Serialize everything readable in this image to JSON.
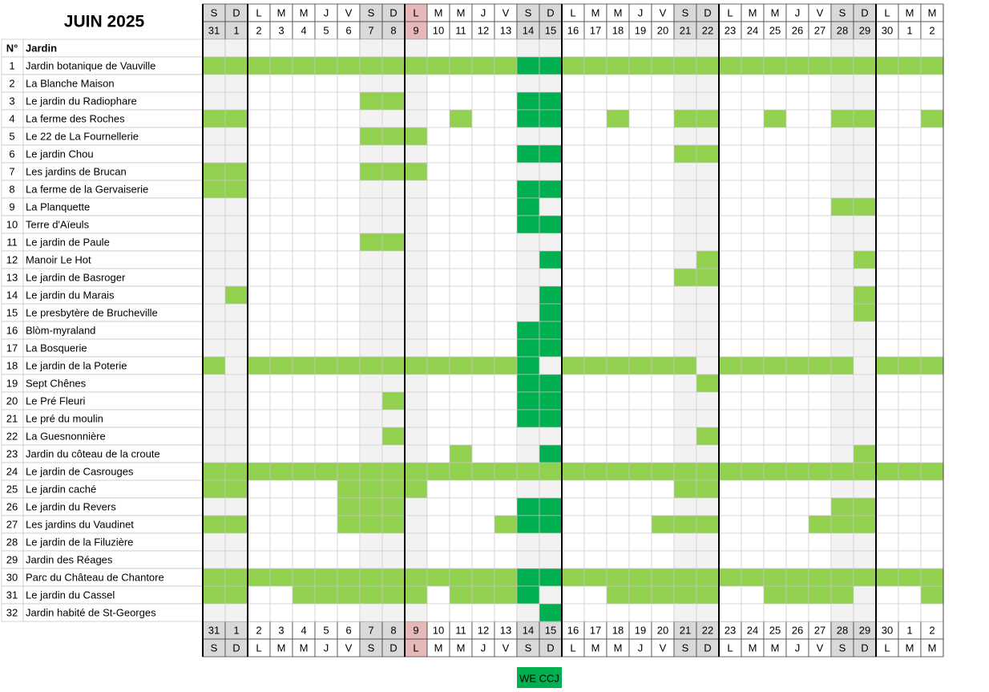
{
  "title": "JUIN 2025",
  "header": {
    "number": "N°",
    "name": "Jardin"
  },
  "colors": {
    "open": "#92d050",
    "we_ccj": "#00b050",
    "weekend": "#f2f2f2",
    "weekend_head": "#d9d9d9",
    "holiday_head": "#e6b8b7"
  },
  "days": [
    {
      "letter": "S",
      "number": 31
    },
    {
      "letter": "D",
      "number": 1
    },
    {
      "letter": "L",
      "number": 2
    },
    {
      "letter": "M",
      "number": 3
    },
    {
      "letter": "M",
      "number": 4
    },
    {
      "letter": "J",
      "number": 5
    },
    {
      "letter": "V",
      "number": 6
    },
    {
      "letter": "S",
      "number": 7
    },
    {
      "letter": "D",
      "number": 8
    },
    {
      "letter": "L",
      "number": 9,
      "holiday": true
    },
    {
      "letter": "M",
      "number": 10
    },
    {
      "letter": "M",
      "number": 11
    },
    {
      "letter": "J",
      "number": 12
    },
    {
      "letter": "V",
      "number": 13
    },
    {
      "letter": "S",
      "number": 14
    },
    {
      "letter": "D",
      "number": 15
    },
    {
      "letter": "L",
      "number": 16
    },
    {
      "letter": "M",
      "number": 17
    },
    {
      "letter": "M",
      "number": 18
    },
    {
      "letter": "J",
      "number": 19
    },
    {
      "letter": "V",
      "number": 20
    },
    {
      "letter": "S",
      "number": 21
    },
    {
      "letter": "D",
      "number": 22
    },
    {
      "letter": "L",
      "number": 23
    },
    {
      "letter": "M",
      "number": 24
    },
    {
      "letter": "M",
      "number": 25
    },
    {
      "letter": "J",
      "number": 26
    },
    {
      "letter": "V",
      "number": 27
    },
    {
      "letter": "S",
      "number": 28
    },
    {
      "letter": "D",
      "number": 29
    },
    {
      "letter": "L",
      "number": 30
    },
    {
      "letter": "M",
      "number": 1
    },
    {
      "letter": "M",
      "number": 2
    }
  ],
  "gardens": [
    {
      "number": 1,
      "name": "Jardin botanique de Vauville",
      "cells": [
        1,
        1,
        1,
        1,
        1,
        1,
        1,
        1,
        1,
        1,
        1,
        1,
        1,
        1,
        2,
        2,
        1,
        1,
        1,
        1,
        1,
        1,
        1,
        1,
        1,
        1,
        1,
        1,
        1,
        1,
        1,
        1,
        1
      ]
    },
    {
      "number": 2,
      "name": "La Blanche Maison",
      "cells": [
        0,
        0,
        0,
        0,
        0,
        0,
        0,
        0,
        0,
        0,
        0,
        0,
        0,
        0,
        0,
        0,
        0,
        0,
        0,
        0,
        0,
        0,
        0,
        0,
        0,
        0,
        0,
        0,
        0,
        0,
        0,
        0,
        0
      ]
    },
    {
      "number": 3,
      "name": "Le jardin du Radiophare",
      "cells": [
        0,
        0,
        0,
        0,
        0,
        0,
        0,
        1,
        1,
        0,
        0,
        0,
        0,
        0,
        2,
        2,
        0,
        0,
        0,
        0,
        0,
        0,
        0,
        0,
        0,
        0,
        0,
        0,
        0,
        0,
        0,
        0,
        0
      ]
    },
    {
      "number": 4,
      "name": "La ferme des Roches",
      "cells": [
        1,
        1,
        0,
        0,
        0,
        0,
        0,
        0,
        0,
        0,
        0,
        1,
        0,
        0,
        2,
        2,
        0,
        0,
        1,
        0,
        0,
        1,
        1,
        0,
        0,
        1,
        0,
        0,
        1,
        1,
        0,
        0,
        1
      ]
    },
    {
      "number": 5,
      "name": "Le 22 de La Fournellerie",
      "cells": [
        0,
        0,
        0,
        0,
        0,
        0,
        0,
        1,
        1,
        1,
        0,
        0,
        0,
        0,
        0,
        0,
        0,
        0,
        0,
        0,
        0,
        0,
        0,
        0,
        0,
        0,
        0,
        0,
        0,
        0,
        0,
        0,
        0
      ]
    },
    {
      "number": 6,
      "name": "Le jardin Chou",
      "cells": [
        0,
        0,
        0,
        0,
        0,
        0,
        0,
        0,
        0,
        0,
        0,
        0,
        0,
        0,
        2,
        2,
        0,
        0,
        0,
        0,
        0,
        1,
        1,
        0,
        0,
        0,
        0,
        0,
        0,
        0,
        0,
        0,
        0
      ]
    },
    {
      "number": 7,
      "name": "Les jardins de Brucan",
      "cells": [
        1,
        1,
        0,
        0,
        0,
        0,
        0,
        1,
        1,
        1,
        0,
        0,
        0,
        0,
        0,
        0,
        0,
        0,
        0,
        0,
        0,
        0,
        0,
        0,
        0,
        0,
        0,
        0,
        0,
        0,
        0,
        0,
        0
      ]
    },
    {
      "number": 8,
      "name": "La ferme de la Gervaiserie",
      "cells": [
        1,
        1,
        0,
        0,
        0,
        0,
        0,
        0,
        0,
        0,
        0,
        0,
        0,
        0,
        2,
        2,
        0,
        0,
        0,
        0,
        0,
        0,
        0,
        0,
        0,
        0,
        0,
        0,
        0,
        0,
        0,
        0,
        0
      ]
    },
    {
      "number": 9,
      "name": "La Planquette",
      "cells": [
        0,
        0,
        0,
        0,
        0,
        0,
        0,
        0,
        0,
        0,
        0,
        0,
        0,
        0,
        2,
        0,
        0,
        0,
        0,
        0,
        0,
        0,
        0,
        0,
        0,
        0,
        0,
        0,
        1,
        1,
        0,
        0,
        0
      ]
    },
    {
      "number": 10,
      "name": "Terre d'Aïeuls",
      "cells": [
        0,
        0,
        0,
        0,
        0,
        0,
        0,
        0,
        0,
        0,
        0,
        0,
        0,
        0,
        2,
        2,
        0,
        0,
        0,
        0,
        0,
        0,
        0,
        0,
        0,
        0,
        0,
        0,
        0,
        0,
        0,
        0,
        0
      ]
    },
    {
      "number": 11,
      "name": "Le jardin de Paule",
      "cells": [
        0,
        0,
        0,
        0,
        0,
        0,
        0,
        1,
        1,
        0,
        0,
        0,
        0,
        0,
        0,
        0,
        0,
        0,
        0,
        0,
        0,
        0,
        0,
        0,
        0,
        0,
        0,
        0,
        0,
        0,
        0,
        0,
        0
      ]
    },
    {
      "number": 12,
      "name": "Manoir Le Hot",
      "cells": [
        0,
        0,
        0,
        0,
        0,
        0,
        0,
        0,
        0,
        0,
        0,
        0,
        0,
        0,
        0,
        2,
        0,
        0,
        0,
        0,
        0,
        0,
        1,
        0,
        0,
        0,
        0,
        0,
        0,
        1,
        0,
        0,
        0
      ]
    },
    {
      "number": 13,
      "name": "Le jardin de Basroger",
      "cells": [
        0,
        0,
        0,
        0,
        0,
        0,
        0,
        0,
        0,
        0,
        0,
        0,
        0,
        0,
        0,
        0,
        0,
        0,
        0,
        0,
        0,
        1,
        1,
        0,
        0,
        0,
        0,
        0,
        0,
        0,
        0,
        0,
        0
      ]
    },
    {
      "number": 14,
      "name": "Le jardin du Marais",
      "cells": [
        0,
        1,
        0,
        0,
        0,
        0,
        0,
        0,
        0,
        0,
        0,
        0,
        0,
        0,
        0,
        2,
        0,
        0,
        0,
        0,
        0,
        0,
        0,
        0,
        0,
        0,
        0,
        0,
        0,
        1,
        0,
        0,
        0
      ]
    },
    {
      "number": 15,
      "name": "Le presbytère de Brucheville",
      "cells": [
        0,
        0,
        0,
        0,
        0,
        0,
        0,
        0,
        0,
        0,
        0,
        0,
        0,
        0,
        0,
        2,
        0,
        0,
        0,
        0,
        0,
        0,
        0,
        0,
        0,
        0,
        0,
        0,
        0,
        1,
        0,
        0,
        0
      ]
    },
    {
      "number": 16,
      "name": "Blòm-myraland",
      "cells": [
        0,
        0,
        0,
        0,
        0,
        0,
        0,
        0,
        0,
        0,
        0,
        0,
        0,
        0,
        2,
        2,
        0,
        0,
        0,
        0,
        0,
        0,
        0,
        0,
        0,
        0,
        0,
        0,
        0,
        0,
        0,
        0,
        0
      ]
    },
    {
      "number": 17,
      "name": "La Bosquerie",
      "cells": [
        0,
        0,
        0,
        0,
        0,
        0,
        0,
        0,
        0,
        0,
        0,
        0,
        0,
        0,
        2,
        2,
        0,
        0,
        0,
        0,
        0,
        0,
        0,
        0,
        0,
        0,
        0,
        0,
        0,
        0,
        0,
        0,
        0
      ]
    },
    {
      "number": 18,
      "name": "Le jardin de la Poterie",
      "cells": [
        1,
        0,
        1,
        1,
        1,
        1,
        1,
        1,
        1,
        1,
        1,
        1,
        1,
        1,
        2,
        0,
        1,
        1,
        1,
        1,
        1,
        1,
        0,
        1,
        1,
        1,
        1,
        1,
        1,
        0,
        1,
        1,
        1
      ]
    },
    {
      "number": 19,
      "name": "Sept Chênes",
      "cells": [
        0,
        0,
        0,
        0,
        0,
        0,
        0,
        0,
        0,
        0,
        0,
        0,
        0,
        0,
        2,
        2,
        0,
        0,
        0,
        0,
        0,
        0,
        1,
        0,
        0,
        0,
        0,
        0,
        0,
        0,
        0,
        0,
        0
      ]
    },
    {
      "number": 20,
      "name": "Le Pré Fleuri",
      "cells": [
        0,
        0,
        0,
        0,
        0,
        0,
        0,
        0,
        1,
        0,
        0,
        0,
        0,
        0,
        2,
        2,
        0,
        0,
        0,
        0,
        0,
        0,
        0,
        0,
        0,
        0,
        0,
        0,
        0,
        0,
        0,
        0,
        0
      ]
    },
    {
      "number": 21,
      "name": "Le pré du moulin",
      "cells": [
        0,
        0,
        0,
        0,
        0,
        0,
        0,
        0,
        0,
        0,
        0,
        0,
        0,
        0,
        2,
        2,
        0,
        0,
        0,
        0,
        0,
        0,
        0,
        0,
        0,
        0,
        0,
        0,
        0,
        0,
        0,
        0,
        0
      ]
    },
    {
      "number": 22,
      "name": "La Guesnonnière",
      "cells": [
        0,
        0,
        0,
        0,
        0,
        0,
        0,
        0,
        1,
        0,
        0,
        0,
        0,
        0,
        0,
        0,
        0,
        0,
        0,
        0,
        0,
        0,
        1,
        0,
        0,
        0,
        0,
        0,
        0,
        0,
        0,
        0,
        0
      ]
    },
    {
      "number": 23,
      "name": "Jardin du côteau de la croute",
      "cells": [
        0,
        0,
        0,
        0,
        0,
        0,
        0,
        0,
        0,
        0,
        0,
        1,
        0,
        0,
        0,
        2,
        0,
        0,
        0,
        0,
        0,
        0,
        0,
        0,
        0,
        0,
        0,
        0,
        0,
        1,
        0,
        0,
        0
      ]
    },
    {
      "number": 24,
      "name": "Le jardin de Casrouges",
      "cells": [
        1,
        1,
        1,
        1,
        1,
        1,
        1,
        1,
        1,
        1,
        1,
        1,
        1,
        1,
        1,
        1,
        1,
        1,
        1,
        1,
        1,
        1,
        1,
        1,
        1,
        1,
        1,
        1,
        1,
        1,
        1,
        1,
        1
      ]
    },
    {
      "number": 25,
      "name": "Le jardin caché",
      "cells": [
        1,
        1,
        0,
        0,
        0,
        0,
        1,
        1,
        1,
        1,
        0,
        0,
        0,
        0,
        0,
        0,
        0,
        0,
        0,
        0,
        0,
        1,
        1,
        0,
        0,
        0,
        0,
        0,
        0,
        0,
        0,
        0,
        0
      ]
    },
    {
      "number": 26,
      "name": "Le jardin du Revers",
      "cells": [
        0,
        0,
        0,
        0,
        0,
        0,
        1,
        1,
        1,
        0,
        0,
        0,
        0,
        0,
        2,
        2,
        0,
        0,
        0,
        0,
        0,
        0,
        0,
        0,
        0,
        0,
        0,
        0,
        1,
        1,
        0,
        0,
        0
      ]
    },
    {
      "number": 27,
      "name": "Les jardins du Vaudinet",
      "cells": [
        1,
        1,
        0,
        0,
        0,
        0,
        1,
        1,
        1,
        0,
        0,
        0,
        0,
        1,
        2,
        2,
        0,
        0,
        0,
        0,
        1,
        1,
        1,
        0,
        0,
        0,
        0,
        1,
        1,
        1,
        0,
        0,
        0
      ]
    },
    {
      "number": 28,
      "name": "Le jardin de la Filuzière",
      "cells": [
        0,
        0,
        0,
        0,
        0,
        0,
        0,
        0,
        0,
        0,
        0,
        0,
        0,
        0,
        0,
        0,
        0,
        0,
        0,
        0,
        0,
        0,
        0,
        0,
        0,
        0,
        0,
        0,
        0,
        0,
        0,
        0,
        0
      ]
    },
    {
      "number": 29,
      "name": "Jardin des Réages",
      "cells": [
        0,
        0,
        0,
        0,
        0,
        0,
        0,
        0,
        0,
        0,
        0,
        0,
        0,
        0,
        0,
        0,
        0,
        0,
        0,
        0,
        0,
        0,
        0,
        0,
        0,
        0,
        0,
        0,
        0,
        0,
        0,
        0,
        0
      ]
    },
    {
      "number": 30,
      "name": "Parc du Château de Chantore",
      "cells": [
        1,
        1,
        1,
        1,
        1,
        1,
        1,
        1,
        1,
        1,
        1,
        1,
        1,
        1,
        2,
        2,
        1,
        1,
        1,
        1,
        1,
        1,
        1,
        1,
        1,
        1,
        1,
        1,
        1,
        1,
        1,
        1,
        1
      ]
    },
    {
      "number": 31,
      "name": "Le jardin du Cassel",
      "cells": [
        1,
        1,
        0,
        0,
        1,
        1,
        1,
        1,
        1,
        1,
        0,
        1,
        1,
        1,
        2,
        0,
        0,
        0,
        1,
        1,
        1,
        1,
        1,
        0,
        0,
        1,
        1,
        1,
        1,
        0,
        0,
        0,
        1
      ]
    },
    {
      "number": 32,
      "name": "Jardin habité de St-Georges",
      "cells": [
        0,
        0,
        0,
        0,
        0,
        0,
        0,
        0,
        0,
        0,
        0,
        0,
        0,
        0,
        0,
        2,
        0,
        0,
        0,
        0,
        0,
        0,
        0,
        0,
        0,
        0,
        0,
        0,
        0,
        0,
        0,
        0,
        0
      ]
    }
  ],
  "legend": "WE CCJ"
}
